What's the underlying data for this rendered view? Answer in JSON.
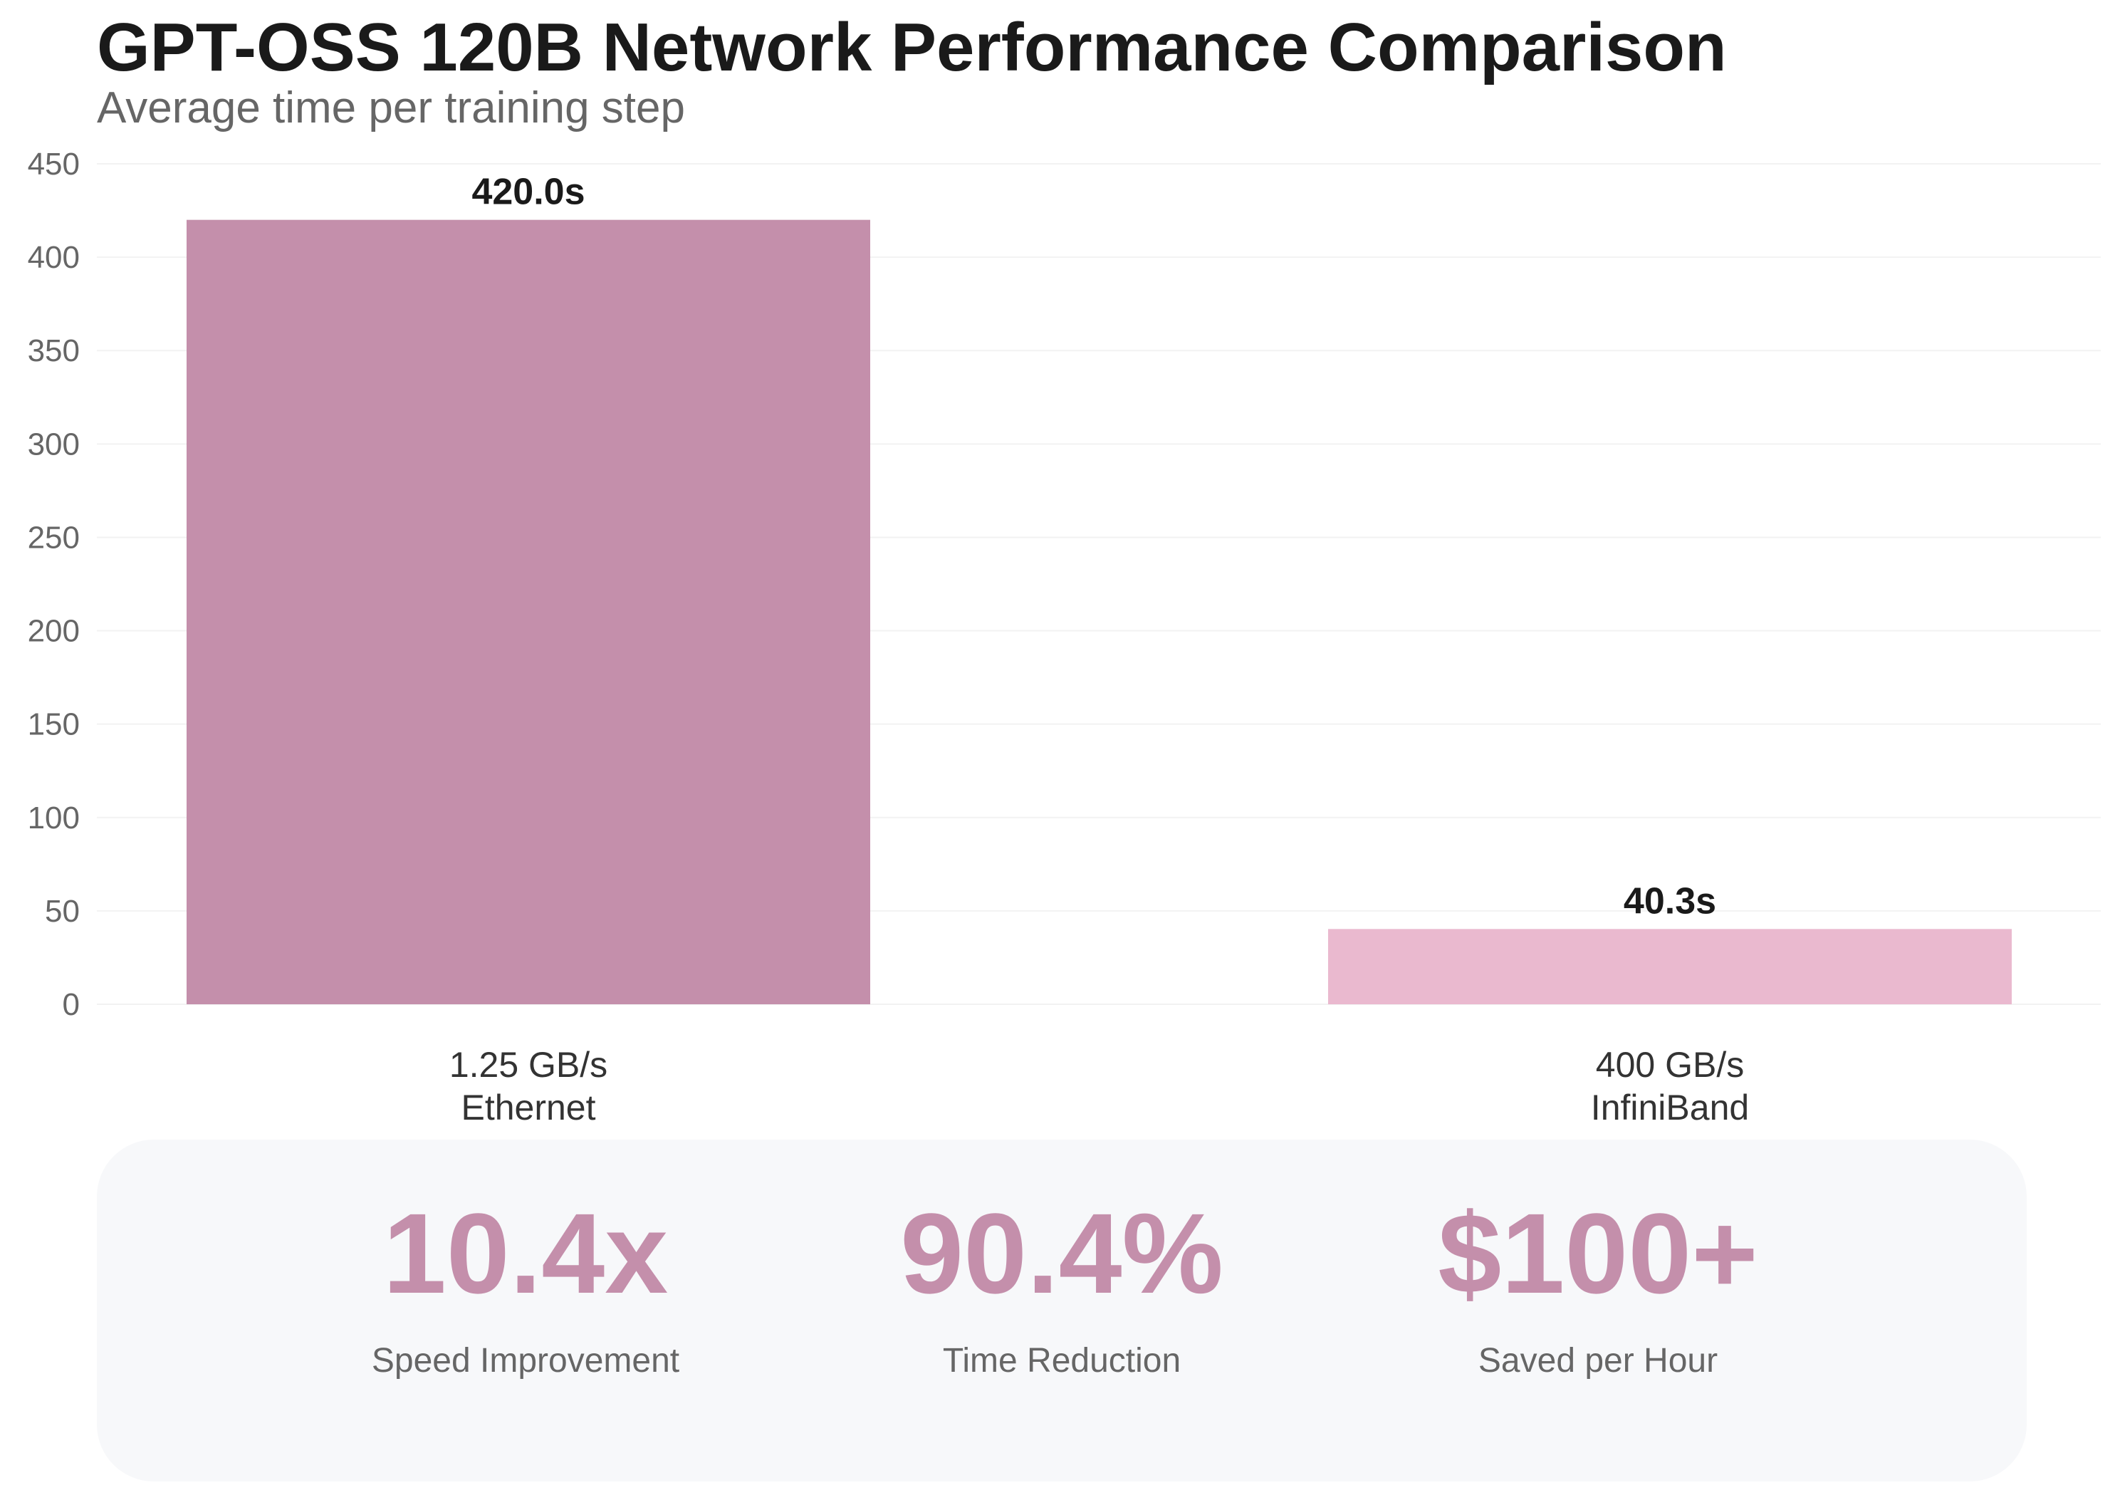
{
  "header": {
    "title": "GPT-OSS 120B Network Performance Comparison",
    "subtitle": "Average time per training step"
  },
  "chart_data": {
    "type": "bar",
    "title": "GPT-OSS 120B Network Performance Comparison",
    "subtitle": "Average time per training step",
    "categories": [
      "1.25 GB/s\nEthernet",
      "400 GB/s\nInfiniBand"
    ],
    "category_lines": [
      [
        "1.25 GB/s",
        "Ethernet"
      ],
      [
        "400 GB/s",
        "InfiniBand"
      ]
    ],
    "values": [
      420.0,
      40.3
    ],
    "value_labels": [
      "420.0s",
      "40.3s"
    ],
    "bar_colors": [
      "#c48fab",
      "#eab9cf"
    ],
    "xlabel": "",
    "ylabel": "",
    "ylim": [
      0,
      450
    ],
    "yticks": [
      0,
      50,
      100,
      150,
      200,
      250,
      300,
      350,
      400,
      450
    ],
    "grid": true,
    "legend": "none"
  },
  "stats": [
    {
      "value": "10.4x",
      "label": "Speed Improvement"
    },
    {
      "value": "90.4%",
      "label": "Time Reduction"
    },
    {
      "value": "$100+",
      "label": "Saved per Hour"
    }
  ],
  "colors": {
    "accent": "#c48fab",
    "accent_light": "#eab9cf",
    "title": "#1a1a1a",
    "muted": "#666666",
    "panel_bg": "#f7f8fa"
  }
}
